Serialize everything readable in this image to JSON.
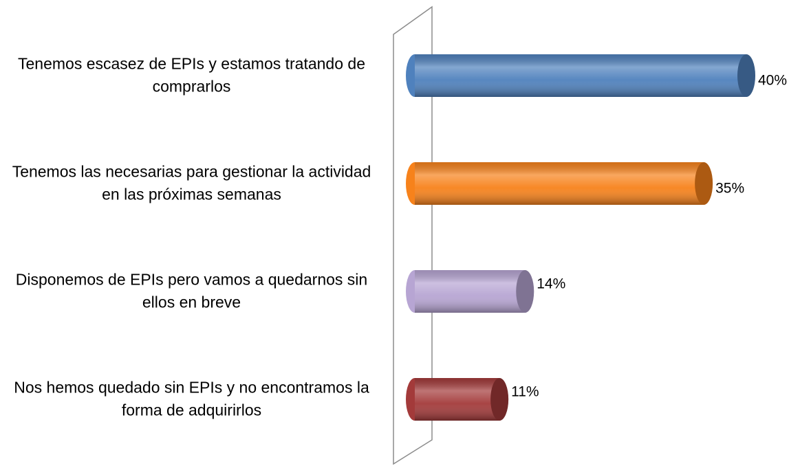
{
  "chart_data": {
    "type": "bar",
    "orientation": "horizontal",
    "categories": [
      "Tenemos escasez de EPIs y estamos tratando de comprarlos",
      "Tenemos las necesarias para gestionar la actividad en las próximas semanas",
      "Disponemos de EPIs pero vamos a quedarnos sin ellos en breve",
      "Nos hemos quedado sin EPIs y no encontramos la forma de adquirirlos"
    ],
    "values": [
      40,
      35,
      14,
      11
    ],
    "value_labels": [
      "40%",
      "35%",
      "14%",
      "11%"
    ],
    "colors": [
      "#4f81bd",
      "#f7821b",
      "#b7a5d3",
      "#a33a3a"
    ],
    "xlim": [
      0,
      40
    ]
  }
}
